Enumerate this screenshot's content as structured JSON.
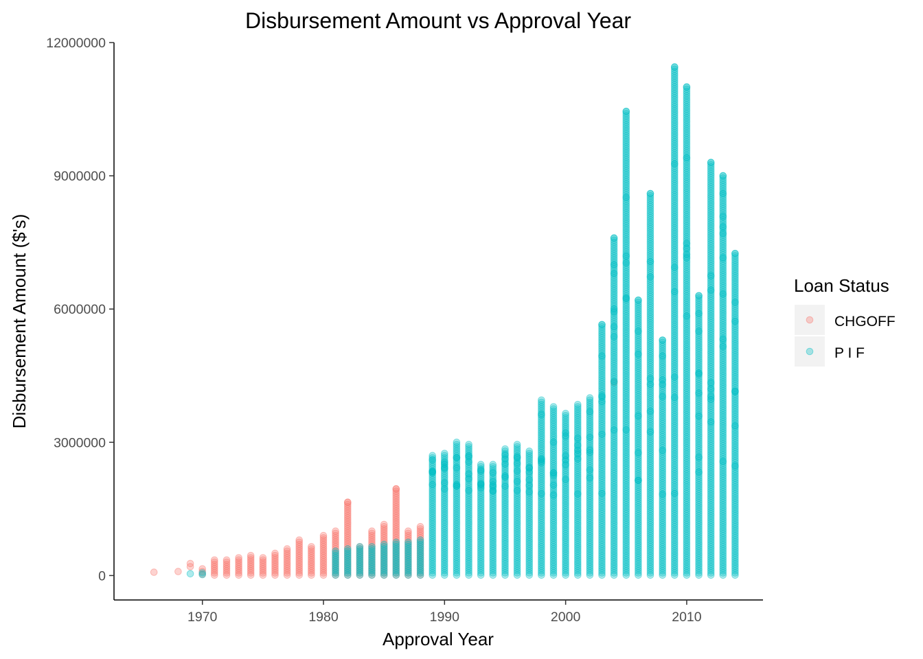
{
  "chart_data": {
    "type": "scatter",
    "title": "Disbursement Amount vs Approval Year",
    "xlabel": "Approval Year",
    "ylabel": "Disbursement Amount ($'s)",
    "xlim": [
      1962.7,
      2016.3
    ],
    "ylim": [
      -550000,
      12000000
    ],
    "x_ticks": [
      1970,
      1980,
      1990,
      2000,
      2010
    ],
    "x_tick_labels": [
      "1970",
      "1980",
      "1990",
      "2000",
      "2010"
    ],
    "y_ticks": [
      0,
      3000000,
      6000000,
      9000000,
      12000000
    ],
    "y_tick_labels": [
      "0",
      "3000000",
      "6000000",
      "9000000",
      "12000000"
    ],
    "grid": false,
    "legend": {
      "title": "Loan Status",
      "position": "right",
      "entries": [
        {
          "label": "CHGOFF",
          "color": "#F8766D"
        },
        {
          "label": "P I F",
          "color": "#00BFC4"
        }
      ]
    },
    "series": [
      {
        "name": "CHGOFF",
        "color": "#F8766D",
        "columns": [
          {
            "x": 1966,
            "min": 75000,
            "max": 75000
          },
          {
            "x": 1968,
            "min": 90000,
            "max": 90000
          },
          {
            "x": 1969,
            "min": 200000,
            "max": 270000
          },
          {
            "x": 1970,
            "min": 30000,
            "max": 150000
          },
          {
            "x": 1971,
            "min": 10000,
            "max": 350000
          },
          {
            "x": 1972,
            "min": 10000,
            "max": 350000
          },
          {
            "x": 1973,
            "min": 10000,
            "max": 400000
          },
          {
            "x": 1974,
            "min": 10000,
            "max": 450000
          },
          {
            "x": 1975,
            "min": 10000,
            "max": 400000
          },
          {
            "x": 1976,
            "min": 10000,
            "max": 500000
          },
          {
            "x": 1977,
            "min": 10000,
            "max": 600000
          },
          {
            "x": 1978,
            "min": 10000,
            "max": 800000
          },
          {
            "x": 1979,
            "min": 10000,
            "max": 650000
          },
          {
            "x": 1980,
            "min": 10000,
            "max": 900000
          },
          {
            "x": 1981,
            "min": 10000,
            "max": 1000000
          },
          {
            "x": 1982,
            "min": 10000,
            "max": 1650000
          },
          {
            "x": 1983,
            "min": 10000,
            "max": 650000
          },
          {
            "x": 1984,
            "min": 10000,
            "max": 1000000
          },
          {
            "x": 1985,
            "min": 10000,
            "max": 1150000
          },
          {
            "x": 1986,
            "min": 10000,
            "max": 1950000
          },
          {
            "x": 1987,
            "min": 10000,
            "max": 1000000
          },
          {
            "x": 1988,
            "min": 10000,
            "max": 1100000
          },
          {
            "x": 2004,
            "min": 4350000,
            "max": 4350000
          }
        ]
      },
      {
        "name": "P I F",
        "color": "#00BFC4",
        "columns": [
          {
            "x": 1969,
            "min": 40000,
            "max": 40000
          },
          {
            "x": 1970,
            "min": 20000,
            "max": 60000
          },
          {
            "x": 1981,
            "min": 10000,
            "max": 550000
          },
          {
            "x": 1982,
            "min": 10000,
            "max": 600000
          },
          {
            "x": 1983,
            "min": 10000,
            "max": 650000
          },
          {
            "x": 1984,
            "min": 10000,
            "max": 650000
          },
          {
            "x": 1985,
            "min": 10000,
            "max": 700000
          },
          {
            "x": 1986,
            "min": 10000,
            "max": 750000
          },
          {
            "x": 1987,
            "min": 10000,
            "max": 750000
          },
          {
            "x": 1988,
            "min": 10000,
            "max": 800000
          },
          {
            "x": 1989,
            "min": 10000,
            "max": 2700000
          },
          {
            "x": 1990,
            "min": 10000,
            "max": 2750000
          },
          {
            "x": 1991,
            "min": 10000,
            "max": 3000000
          },
          {
            "x": 1992,
            "min": 10000,
            "max": 2950000
          },
          {
            "x": 1993,
            "min": 10000,
            "max": 2500000
          },
          {
            "x": 1994,
            "min": 10000,
            "max": 2500000
          },
          {
            "x": 1995,
            "min": 10000,
            "max": 2850000
          },
          {
            "x": 1996,
            "min": 10000,
            "max": 2950000
          },
          {
            "x": 1997,
            "min": 10000,
            "max": 2800000
          },
          {
            "x": 1998,
            "min": 10000,
            "max": 3950000
          },
          {
            "x": 1999,
            "min": 10000,
            "max": 3800000
          },
          {
            "x": 2000,
            "min": 10000,
            "max": 3650000
          },
          {
            "x": 2001,
            "min": 10000,
            "max": 3850000
          },
          {
            "x": 2002,
            "min": 10000,
            "max": 4000000
          },
          {
            "x": 2003,
            "min": 10000,
            "max": 5650000
          },
          {
            "x": 2004,
            "min": 10000,
            "max": 7600000
          },
          {
            "x": 2005,
            "min": 10000,
            "max": 10450000
          },
          {
            "x": 2006,
            "min": 10000,
            "max": 6200000
          },
          {
            "x": 2007,
            "min": 10000,
            "max": 8600000
          },
          {
            "x": 2008,
            "min": 10000,
            "max": 5300000
          },
          {
            "x": 2009,
            "min": 10000,
            "max": 11450000
          },
          {
            "x": 2010,
            "min": 10000,
            "max": 11000000
          },
          {
            "x": 2011,
            "min": 10000,
            "max": 6300000
          },
          {
            "x": 2012,
            "min": 10000,
            "max": 9300000
          },
          {
            "x": 2013,
            "min": 10000,
            "max": 9000000
          },
          {
            "x": 2014,
            "min": 10000,
            "max": 7250000
          }
        ]
      }
    ],
    "notable_points": [
      {
        "series": "P I F",
        "x": 2009,
        "y": 11450000
      },
      {
        "series": "P I F",
        "x": 2010,
        "y": 11000000
      },
      {
        "series": "P I F",
        "x": 2005,
        "y": 10450000
      },
      {
        "series": "P I F",
        "x": 2012,
        "y": 9300000
      },
      {
        "series": "P I F",
        "x": 2013,
        "y": 9000000
      },
      {
        "series": "P I F",
        "x": 2007,
        "y": 8600000
      },
      {
        "series": "P I F",
        "x": 2013,
        "y": 8600000
      },
      {
        "series": "P I F",
        "x": 2013,
        "y": 7850000
      },
      {
        "series": "P I F",
        "x": 2013,
        "y": 7700000
      },
      {
        "series": "P I F",
        "x": 2004,
        "y": 7600000
      },
      {
        "series": "P I F",
        "x": 2014,
        "y": 7250000
      },
      {
        "series": "P I F",
        "x": 2004,
        "y": 6800000
      },
      {
        "series": "P I F",
        "x": 2012,
        "y": 6750000
      },
      {
        "series": "P I F",
        "x": 2011,
        "y": 6300000
      },
      {
        "series": "P I F",
        "x": 2006,
        "y": 6200000
      },
      {
        "series": "P I F",
        "x": 2011,
        "y": 5900000
      },
      {
        "series": "P I F",
        "x": 2003,
        "y": 5650000
      },
      {
        "series": "P I F",
        "x": 2004,
        "y": 5600000
      },
      {
        "series": "P I F",
        "x": 2011,
        "y": 5500000
      },
      {
        "series": "P I F",
        "x": 2008,
        "y": 5300000
      },
      {
        "series": "CHGOFF",
        "x": 1986,
        "y": 1950000
      },
      {
        "series": "CHGOFF",
        "x": 1982,
        "y": 1650000
      }
    ]
  }
}
